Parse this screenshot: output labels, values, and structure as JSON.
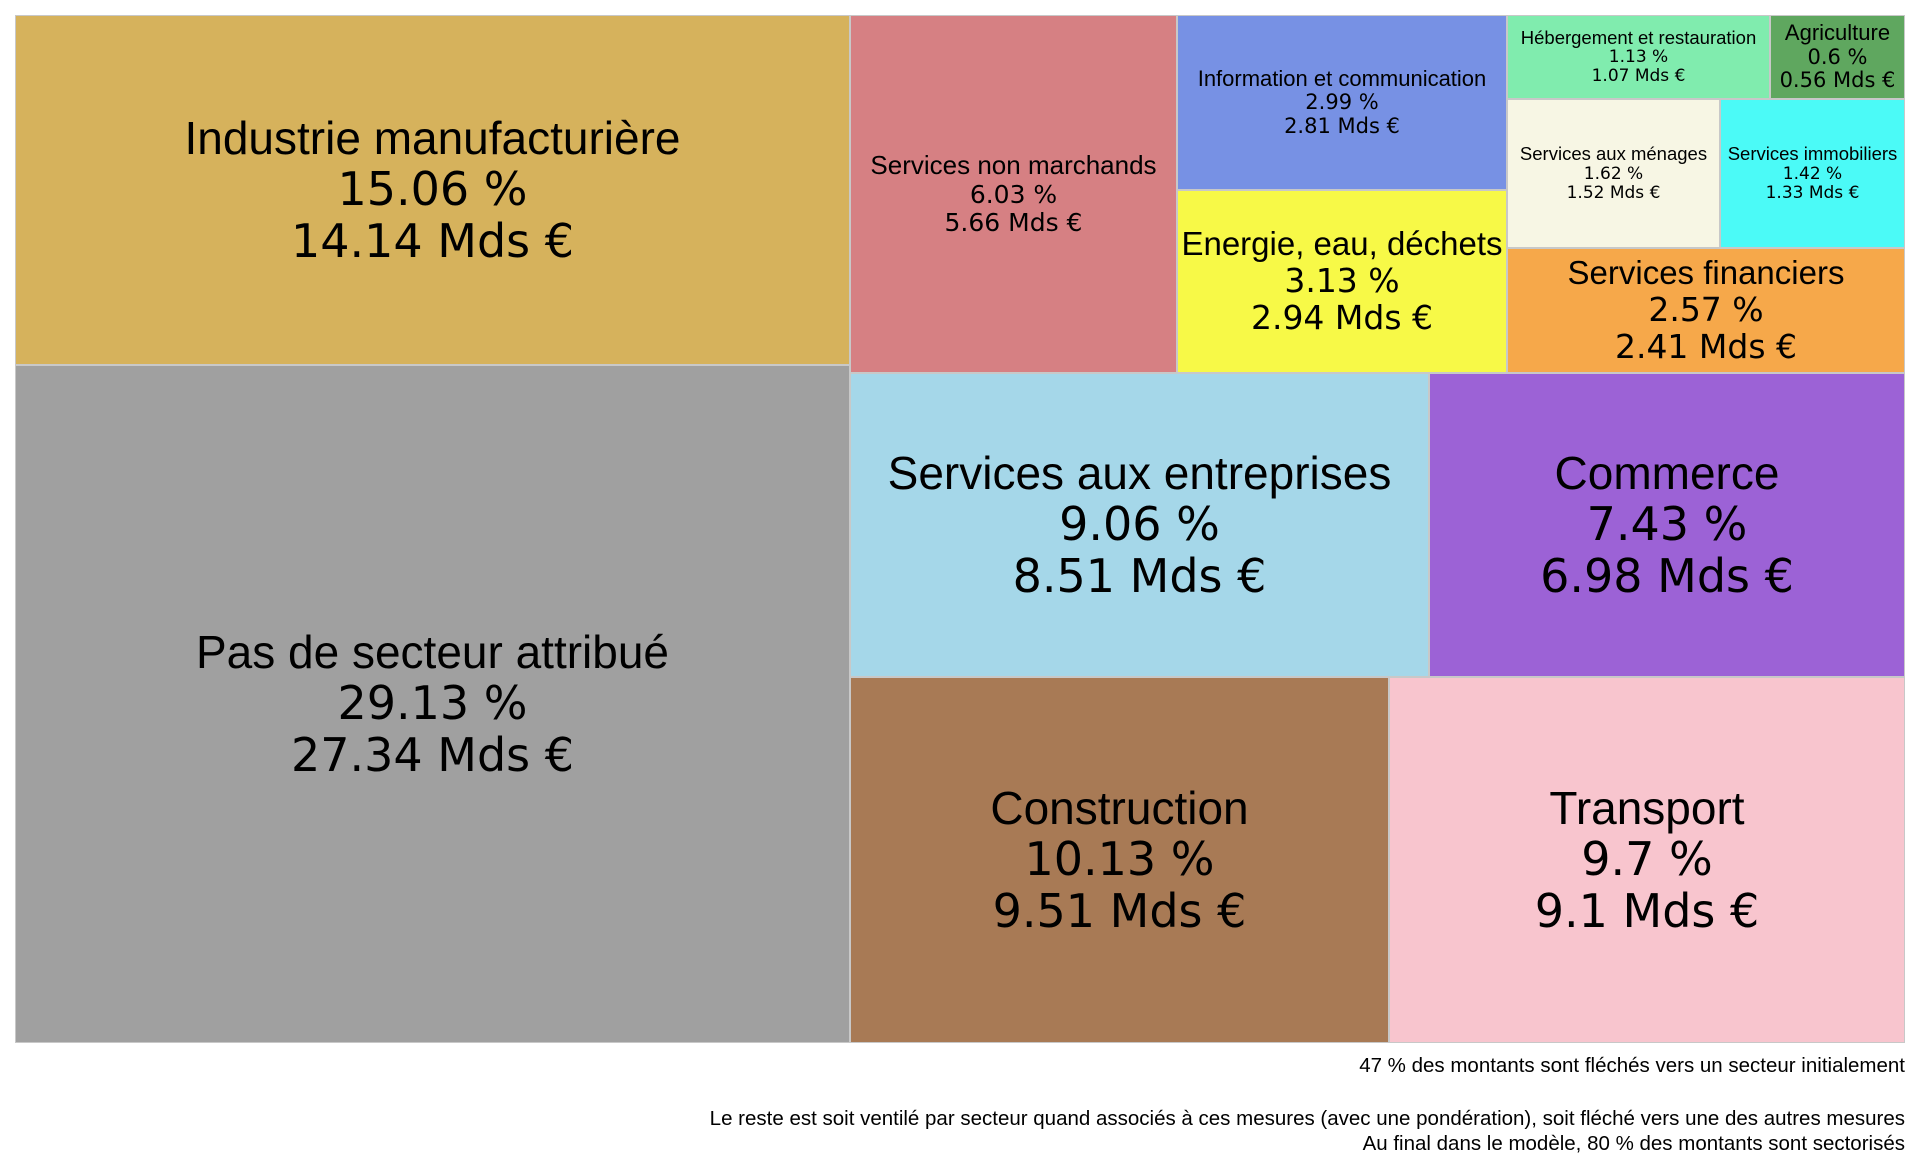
{
  "chart_data": {
    "type": "treemap",
    "title": "",
    "unit_value": "Mds €",
    "cells": [
      {
        "label": "Pas de secteur attribué",
        "percent": "29.13 %",
        "amount": "27.34 Mds €",
        "value": 27.34,
        "color": "#a0a0a0"
      },
      {
        "label": "Industrie manufacturière",
        "percent": "15.06 %",
        "amount": "14.14 Mds €",
        "value": 14.14,
        "color": "#d6b25c"
      },
      {
        "label": "Construction",
        "percent": "10.13 %",
        "amount": "9.51 Mds €",
        "value": 9.51,
        "color": "#a87a55"
      },
      {
        "label": "Transport",
        "percent": "9.7 %",
        "amount": "9.1 Mds €",
        "value": 9.1,
        "color": "#f8c5ce"
      },
      {
        "label": "Services aux entreprises",
        "percent": "9.06 %",
        "amount": "8.51 Mds €",
        "value": 8.51,
        "color": "#a5d7e9"
      },
      {
        "label": "Commerce",
        "percent": "7.43 %",
        "amount": "6.98 Mds €",
        "value": 6.98,
        "color": "#9c62d6"
      },
      {
        "label": "Services non marchands",
        "percent": "6.03 %",
        "amount": "5.66 Mds €",
        "value": 5.66,
        "color": "#d68083"
      },
      {
        "label": "Energie, eau, déchets",
        "percent": "3.13 %",
        "amount": "2.94 Mds €",
        "value": 2.94,
        "color": "#f7f947"
      },
      {
        "label": "Information et communication",
        "percent": "2.99 %",
        "amount": "2.81 Mds €",
        "value": 2.81,
        "color": "#7791e4"
      },
      {
        "label": "Services financiers",
        "percent": "2.57 %",
        "amount": "2.41 Mds €",
        "value": 2.41,
        "color": "#f6a84a"
      },
      {
        "label": "Services aux ménages",
        "percent": "1.62 %",
        "amount": "1.52 Mds €",
        "value": 1.52,
        "color": "#f7f6e4"
      },
      {
        "label": "Services immobiliers",
        "percent": "1.42 %",
        "amount": "1.33 Mds €",
        "value": 1.33,
        "color": "#4bfaf7"
      },
      {
        "label": "Hébergement et restauration",
        "percent": "1.13 %",
        "amount": "1.07 Mds €",
        "value": 1.07,
        "color": "#80ecae"
      },
      {
        "label": "Agriculture",
        "percent": "0.6 %",
        "amount": "0.56 Mds €",
        "value": 0.56,
        "color": "#5fa75f"
      }
    ],
    "annotations": [
      "47 % des montants sont fléchés vers un secteur initialement",
      "Le reste est soit ventilé par secteur quand associés à ces mesures (avec une pondération), soit fléché vers une des autres mesures",
      "Au final dans le modèle, 80 % des montants sont sectorisés"
    ]
  }
}
